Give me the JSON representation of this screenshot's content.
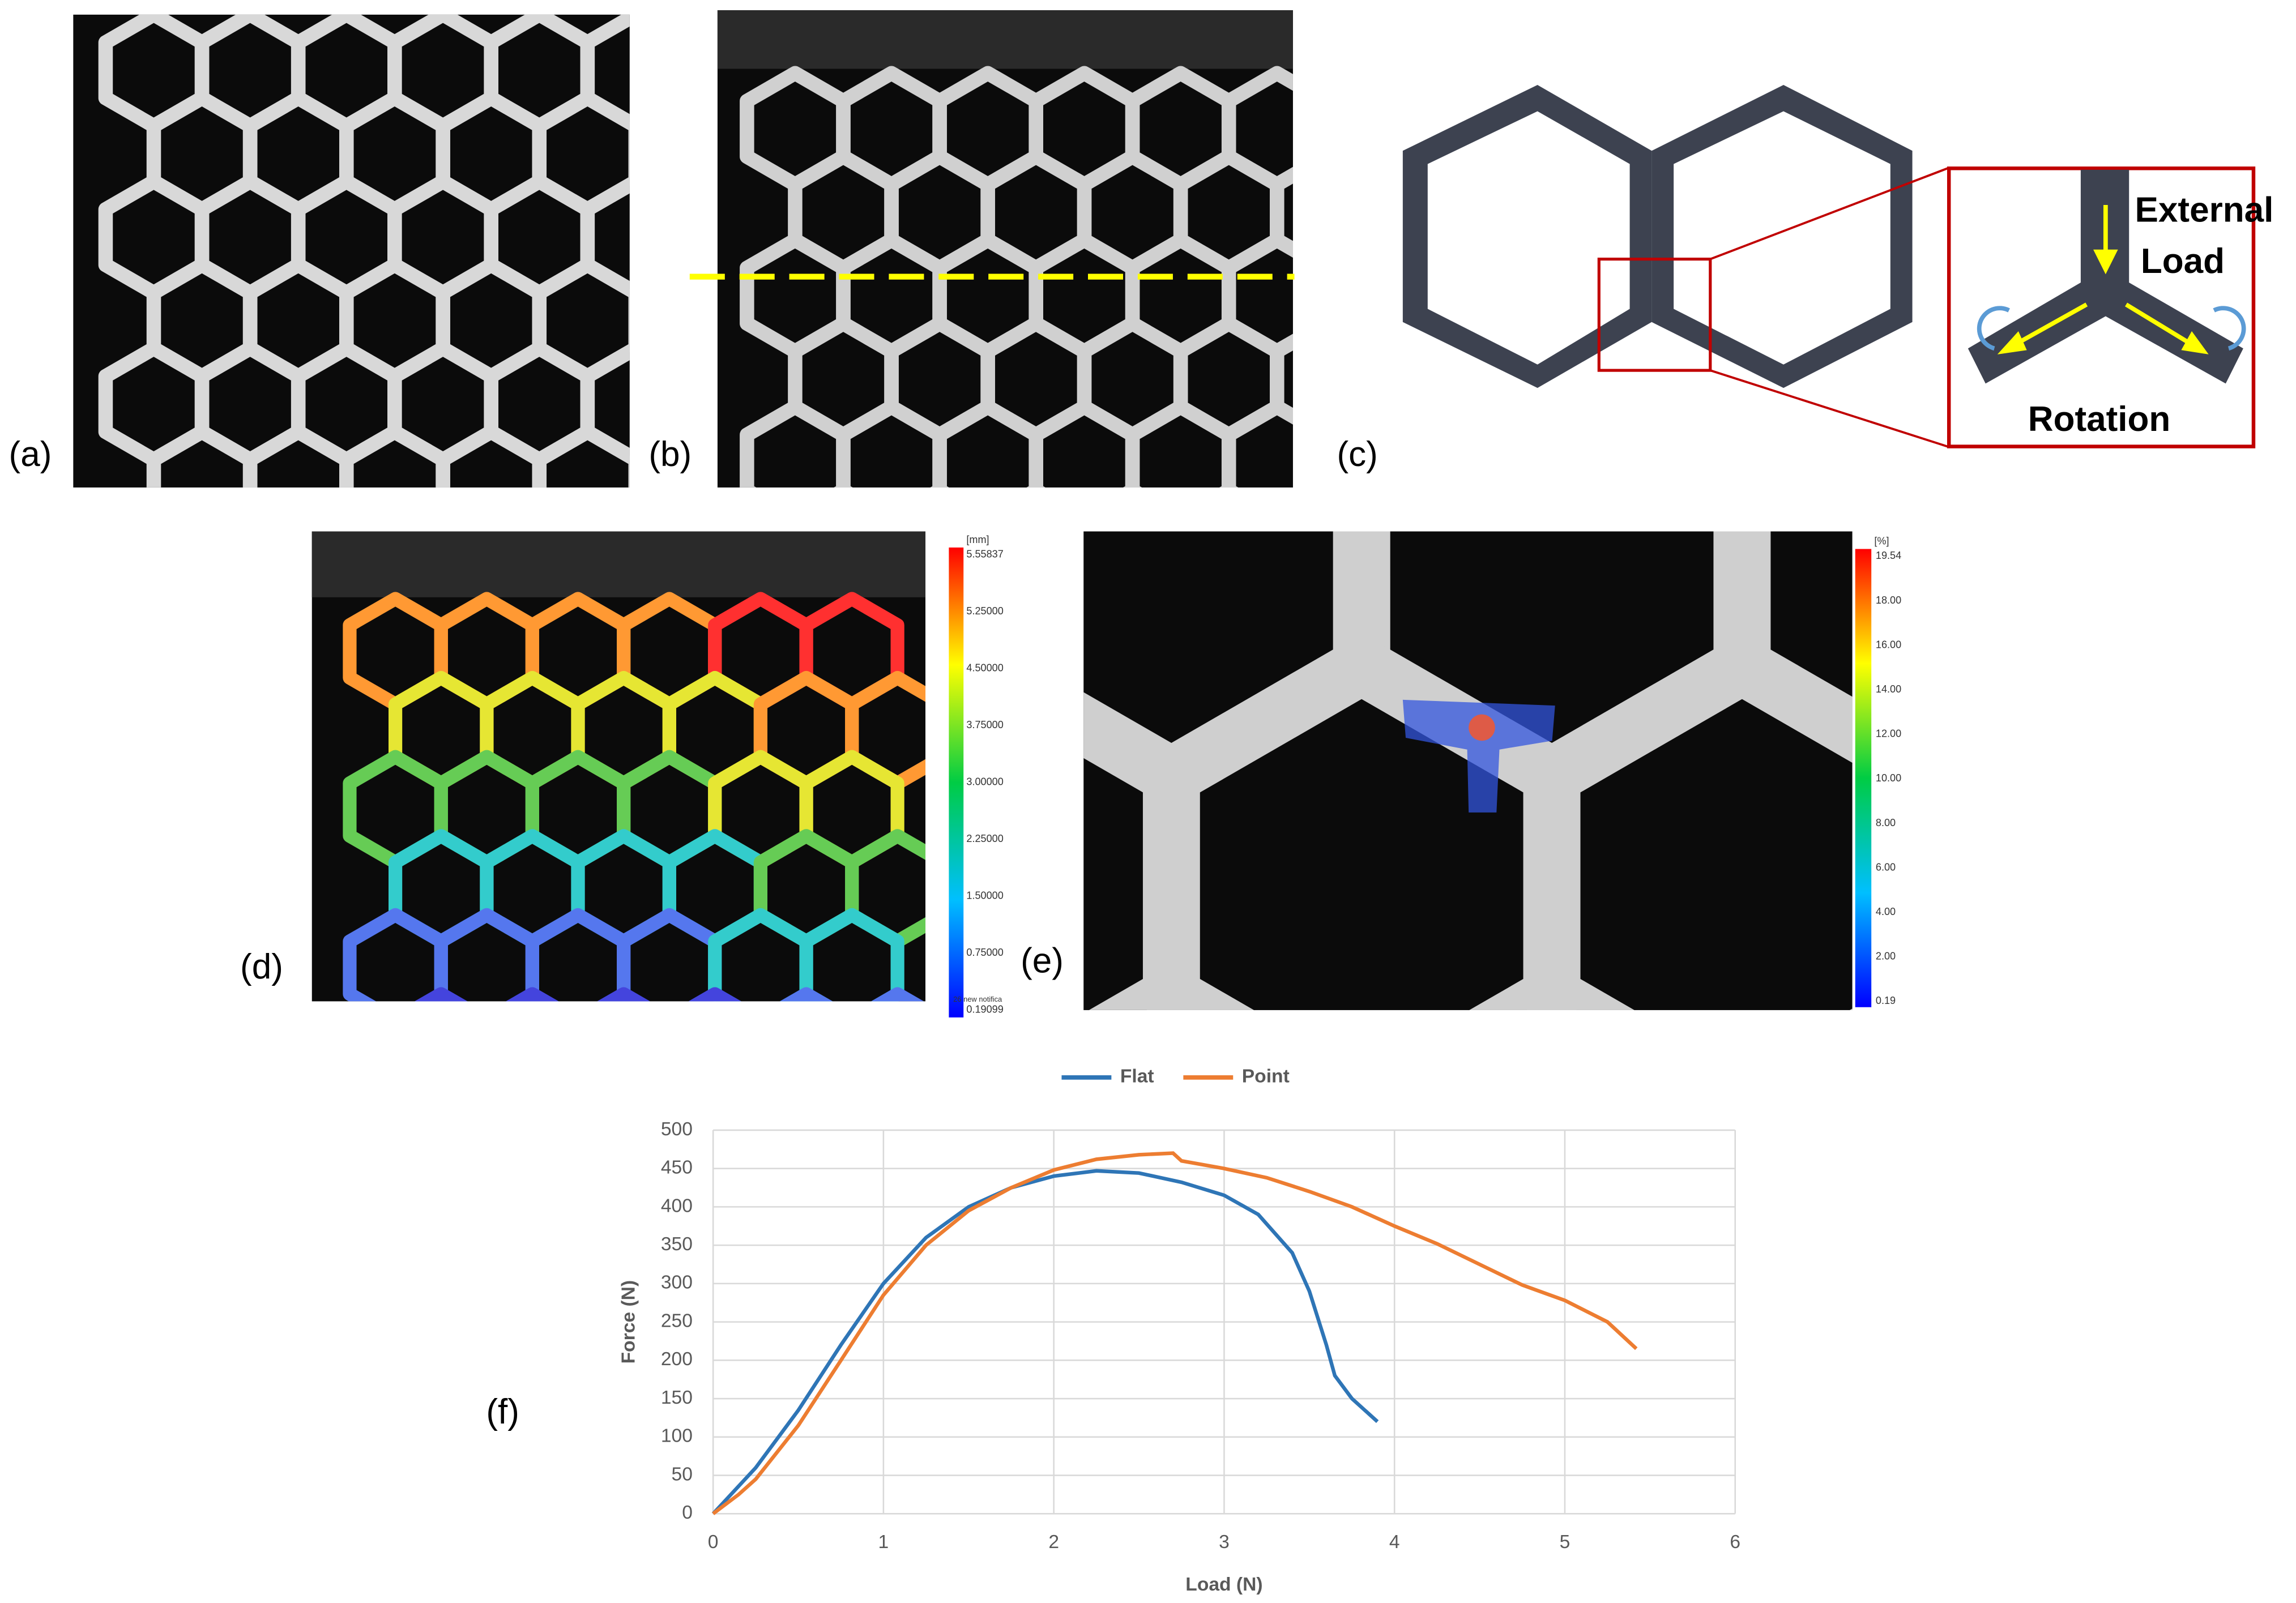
{
  "panels": {
    "a": "(a)",
    "b": "(b)",
    "c": "(c)",
    "d": "(d)",
    "e": "(e)",
    "f": "(f)"
  },
  "diagram": {
    "load_line1": "External",
    "load_line2": "Load",
    "rotation": "Rotation"
  },
  "colorbar_d": {
    "unit": "[mm]",
    "labels": [
      "5.55837",
      "5.25000",
      "4.50000",
      "3.75000",
      "3.00000",
      "2.25000",
      "1.50000",
      "0.75000",
      "0.19099"
    ],
    "note": "26 new notifica"
  },
  "colorbar_e": {
    "unit": "[%]",
    "labels": [
      "19.54",
      "18.00",
      "16.00",
      "14.00",
      "12.00",
      "10.00",
      "8.00",
      "6.00",
      "4.00",
      "2.00",
      "0.19"
    ]
  },
  "chart_data": {
    "type": "line",
    "x_label": "Load (N)",
    "y_label": "Force (N)",
    "xlim": [
      0,
      6
    ],
    "ylim": [
      0,
      500
    ],
    "xticks": [
      0,
      1,
      2,
      3,
      4,
      5,
      6
    ],
    "yticks": [
      0,
      50,
      100,
      150,
      200,
      250,
      300,
      350,
      400,
      450,
      500
    ],
    "grid": true,
    "legend": "top",
    "series": [
      {
        "name": "Flat",
        "color": "#2e75b6",
        "x": [
          0,
          0.25,
          0.5,
          0.75,
          1,
          1.25,
          1.5,
          1.75,
          2,
          2.25,
          2.5,
          2.75,
          3,
          3.2,
          3.4,
          3.5,
          3.6,
          3.65,
          3.75,
          3.9
        ],
        "values": [
          0,
          60,
          135,
          220,
          300,
          360,
          400,
          425,
          440,
          447,
          444,
          432,
          415,
          390,
          340,
          290,
          220,
          180,
          150,
          120
        ]
      },
      {
        "name": "Point",
        "color": "#ed7d31",
        "x": [
          0,
          0.15,
          0.25,
          0.5,
          0.75,
          1,
          1.25,
          1.5,
          1.75,
          2,
          2.25,
          2.5,
          2.7,
          2.75,
          3,
          3.25,
          3.5,
          3.75,
          4,
          4.25,
          4.5,
          4.75,
          5,
          5.25,
          5.42
        ],
        "values": [
          0,
          25,
          45,
          115,
          200,
          285,
          350,
          395,
          425,
          448,
          462,
          468,
          470,
          460,
          450,
          438,
          420,
          400,
          375,
          352,
          325,
          298,
          278,
          250,
          215
        ]
      }
    ]
  }
}
